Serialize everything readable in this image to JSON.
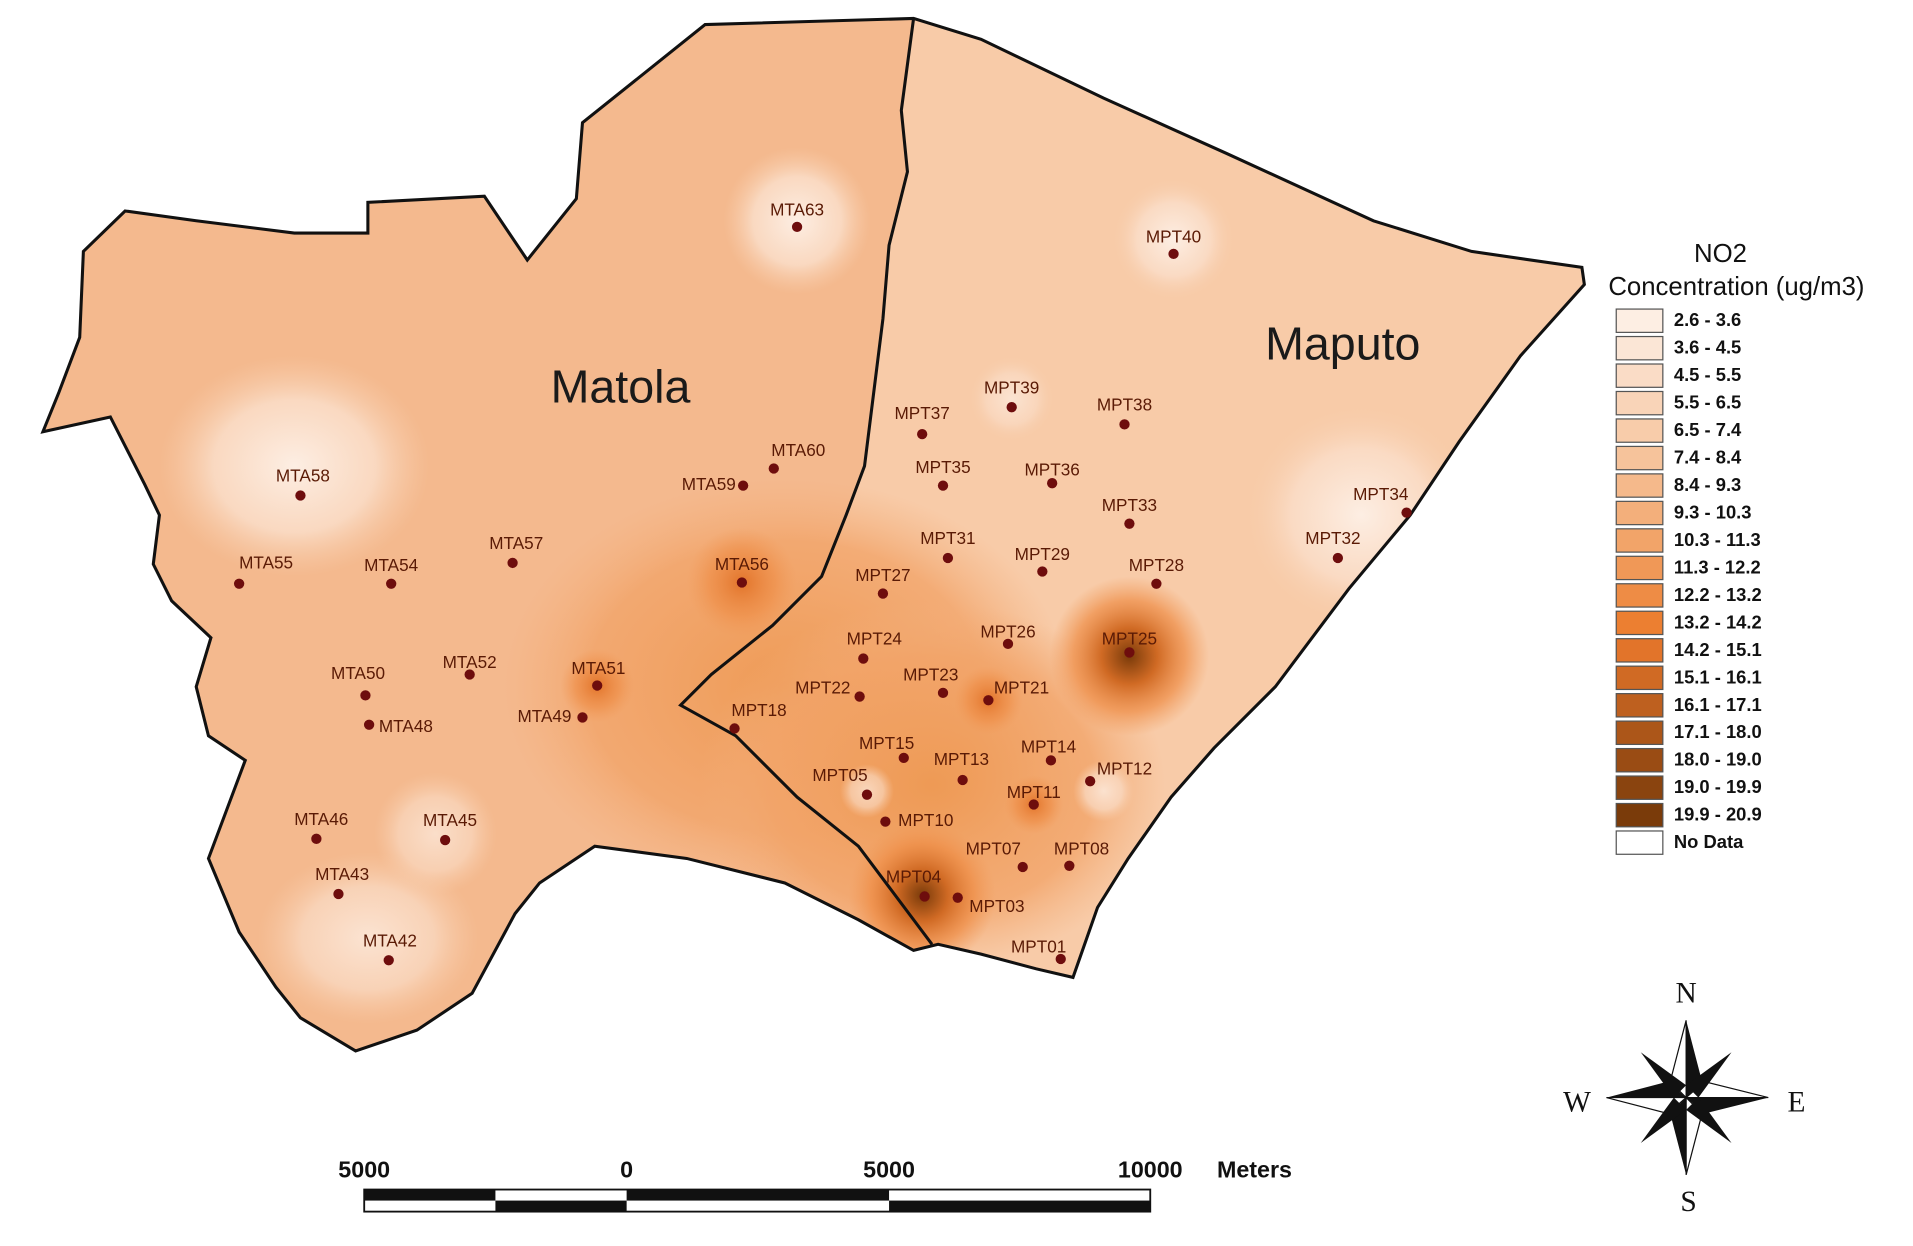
{
  "map": {
    "places": [
      "Matola",
      "Maputo"
    ],
    "stations": [
      "MTA63",
      "MPT40",
      "MPT39",
      "MPT38",
      "MPT37",
      "MTA60",
      "MPT35",
      "MPT36",
      "MTA59",
      "MTA58",
      "MPT34",
      "MPT33",
      "MPT31",
      "MPT32",
      "MTA57",
      "MPT29",
      "MTA55",
      "MTA54",
      "MTA56",
      "MPT28",
      "MPT27",
      "MPT26",
      "MPT24",
      "MPT25",
      "MTA52",
      "MTA51",
      "MTA50",
      "MPT23",
      "MPT21",
      "MPT22",
      "MTA49",
      "MPT18",
      "MTA48",
      "MPT15",
      "MPT14",
      "MPT13",
      "MPT12",
      "MPT05",
      "MPT11",
      "MPT10",
      "MTA46",
      "MTA45",
      "MPT07",
      "MPT08",
      "MTA43",
      "MPT04",
      "MPT03",
      "MTA42",
      "MPT01"
    ],
    "legend": {
      "title": [
        "NO2",
        "Concentration (ug/m3)"
      ],
      "items": [
        {
          "label": "2.6 - 3.6",
          "color": "#fdeee3"
        },
        {
          "label": "3.6 - 4.5",
          "color": "#fbe6d6"
        },
        {
          "label": "4.5 - 5.5",
          "color": "#fadcc6"
        },
        {
          "label": "5.5 - 6.5",
          "color": "#f9d4b8"
        },
        {
          "label": "6.5 - 7.4",
          "color": "#f8ccaa"
        },
        {
          "label": "7.4 - 8.4",
          "color": "#f6c39b"
        },
        {
          "label": "8.4 - 9.3",
          "color": "#f5b98b"
        },
        {
          "label": "9.3 - 10.3",
          "color": "#f3af7b"
        },
        {
          "label": "10.3 - 11.3",
          "color": "#f2a469"
        },
        {
          "label": "11.3 - 12.2",
          "color": "#f09857"
        },
        {
          "label": "12.2 - 13.2",
          "color": "#ee8c45"
        },
        {
          "label": "13.2 - 14.2",
          "color": "#ec7f31"
        },
        {
          "label": "14.2 - 15.1",
          "color": "#e2742a"
        },
        {
          "label": "15.1 - 16.1",
          "color": "#d06a24"
        },
        {
          "label": "16.1 - 17.1",
          "color": "#be601f"
        },
        {
          "label": "17.1 - 18.0",
          "color": "#ac5619"
        },
        {
          "label": "18.0 - 19.0",
          "color": "#9a4c14"
        },
        {
          "label": "19.0 - 19.9",
          "color": "#8a440f"
        },
        {
          "label": "19.9 - 20.9",
          "color": "#7a3b0a"
        },
        {
          "label": "No Data",
          "color": "#ffffff"
        }
      ]
    },
    "scale_bar": {
      "labels": [
        "5000",
        "0",
        "5000",
        "10000"
      ],
      "unit": "Meters"
    },
    "compass": {
      "north": "N",
      "south": "S",
      "west": "W",
      "east": "E"
    }
  }
}
